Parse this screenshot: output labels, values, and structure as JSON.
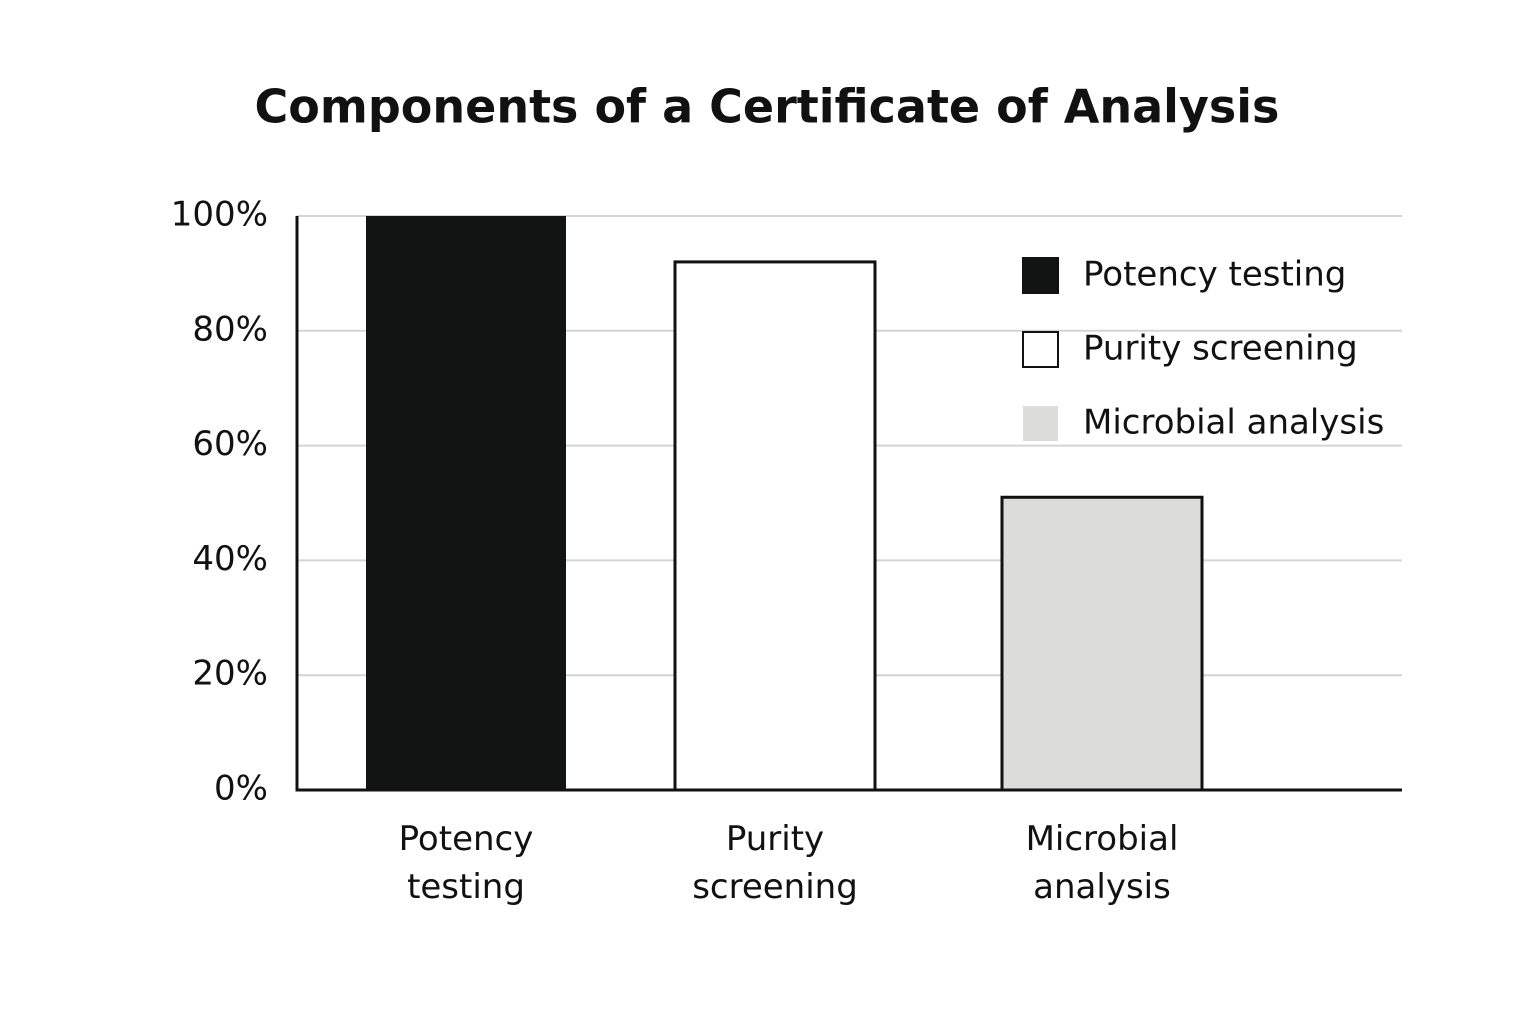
{
  "chart_data": {
    "type": "bar",
    "title": "Components of a Certificate of Analysis",
    "categories": [
      "Potency testing",
      "Purity screening",
      "Microbial analysis"
    ],
    "values": [
      100,
      92,
      51
    ],
    "colors": [
      "#121413",
      "#ffffff",
      "#dcdcda"
    ],
    "ylim": [
      0,
      100
    ],
    "yticks": [
      {
        "value": 0,
        "label": "0%"
      },
      {
        "value": 20,
        "label": "20%"
      },
      {
        "value": 40,
        "label": "40%"
      },
      {
        "value": 60,
        "label": "60%"
      },
      {
        "value": 80,
        "label": "80%"
      },
      {
        "value": 100,
        "label": "100%"
      }
    ],
    "grid": true,
    "legend": "upper right"
  }
}
